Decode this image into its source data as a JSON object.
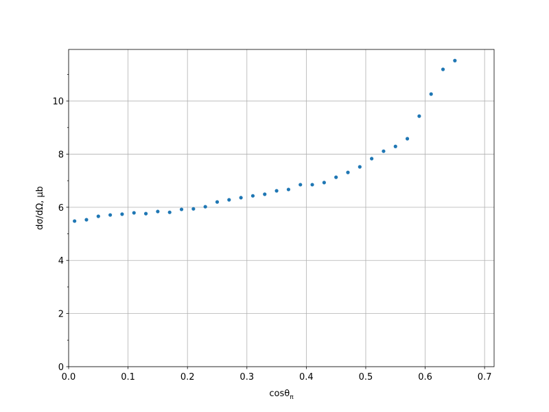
{
  "chart_data": {
    "type": "scatter",
    "xlabel": {
      "text": "cosθ",
      "subscript": "π"
    },
    "ylabel": "dσ/dΩ, μb",
    "x": [
      0.01,
      0.03,
      0.05,
      0.07,
      0.09,
      0.11,
      0.13,
      0.15,
      0.17,
      0.19,
      0.21,
      0.23,
      0.25,
      0.27,
      0.29,
      0.31,
      0.33,
      0.35,
      0.37,
      0.39,
      0.41,
      0.43,
      0.45,
      0.47,
      0.49,
      0.51,
      0.53,
      0.55,
      0.57,
      0.59,
      0.61,
      0.63,
      0.65
    ],
    "values": [
      5.48,
      5.53,
      5.66,
      5.71,
      5.74,
      5.79,
      5.76,
      5.84,
      5.81,
      5.92,
      5.94,
      6.02,
      6.2,
      6.28,
      6.36,
      6.43,
      6.49,
      6.62,
      6.67,
      6.85,
      6.85,
      6.93,
      7.13,
      7.31,
      7.52,
      7.83,
      8.11,
      8.29,
      8.58,
      9.43,
      10.26,
      11.19,
      11.52
    ],
    "color": "#1f77b4",
    "xlim": [
      0,
      0.716
    ],
    "ylim": [
      0,
      11.94
    ],
    "xticks": [
      {
        "value": 0,
        "label": "0.0"
      },
      0.1,
      0.2,
      0.3,
      0.4,
      0.5,
      0.6,
      0.7
    ],
    "yticks": [
      0,
      2,
      4,
      6,
      8,
      10
    ],
    "yminorticks": [
      1,
      3,
      5,
      7,
      9,
      11
    ],
    "grid": true
  }
}
